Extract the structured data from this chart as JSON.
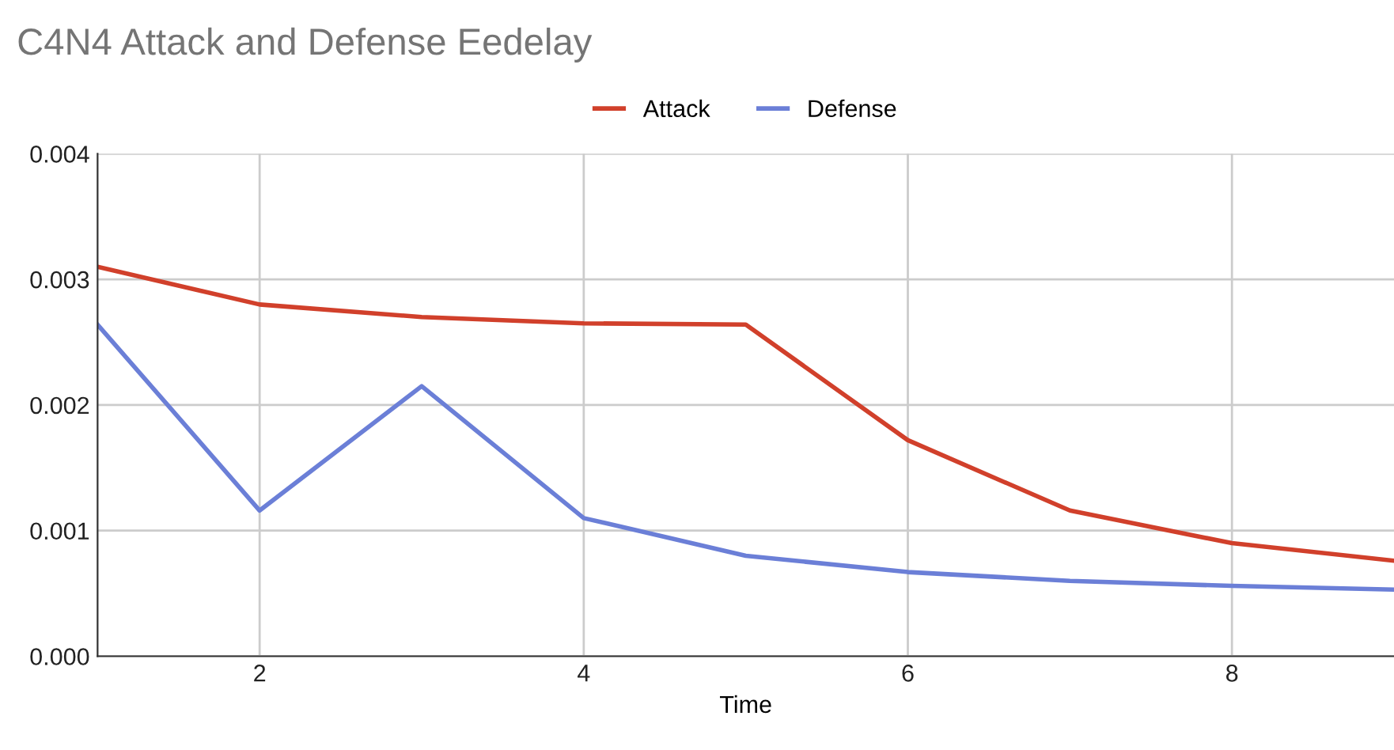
{
  "chart_data": {
    "type": "line",
    "title": "C4N4 Attack and Defense Eedelay",
    "xlabel": "Time",
    "x": [
      1,
      2,
      3,
      4,
      5,
      6,
      7,
      8,
      9
    ],
    "series": [
      {
        "name": "Attack",
        "color": "#d1402b",
        "values": [
          0.0031,
          0.0028,
          0.0027,
          0.00265,
          0.00264,
          0.00172,
          0.00116,
          0.0009,
          0.00076
        ]
      },
      {
        "name": "Defense",
        "color": "#6b7fd7",
        "values": [
          0.00264,
          0.00116,
          0.00215,
          0.0011,
          0.0008,
          0.00067,
          0.0006,
          0.00056,
          0.00053
        ]
      }
    ],
    "xlim": [
      1,
      9
    ],
    "xticks": [
      2,
      4,
      6,
      8
    ],
    "ylim": [
      0,
      0.004
    ],
    "yticks": [
      {
        "value": 0,
        "label": "0.000"
      },
      {
        "value": 0.001,
        "label": "0.001"
      },
      {
        "value": 0.002,
        "label": "0.002"
      },
      {
        "value": 0.003,
        "label": "0.003"
      },
      {
        "value": 0.004,
        "label": "0.004"
      }
    ],
    "grid": true,
    "legend": "top",
    "marker": "none",
    "line_style": "solid"
  }
}
